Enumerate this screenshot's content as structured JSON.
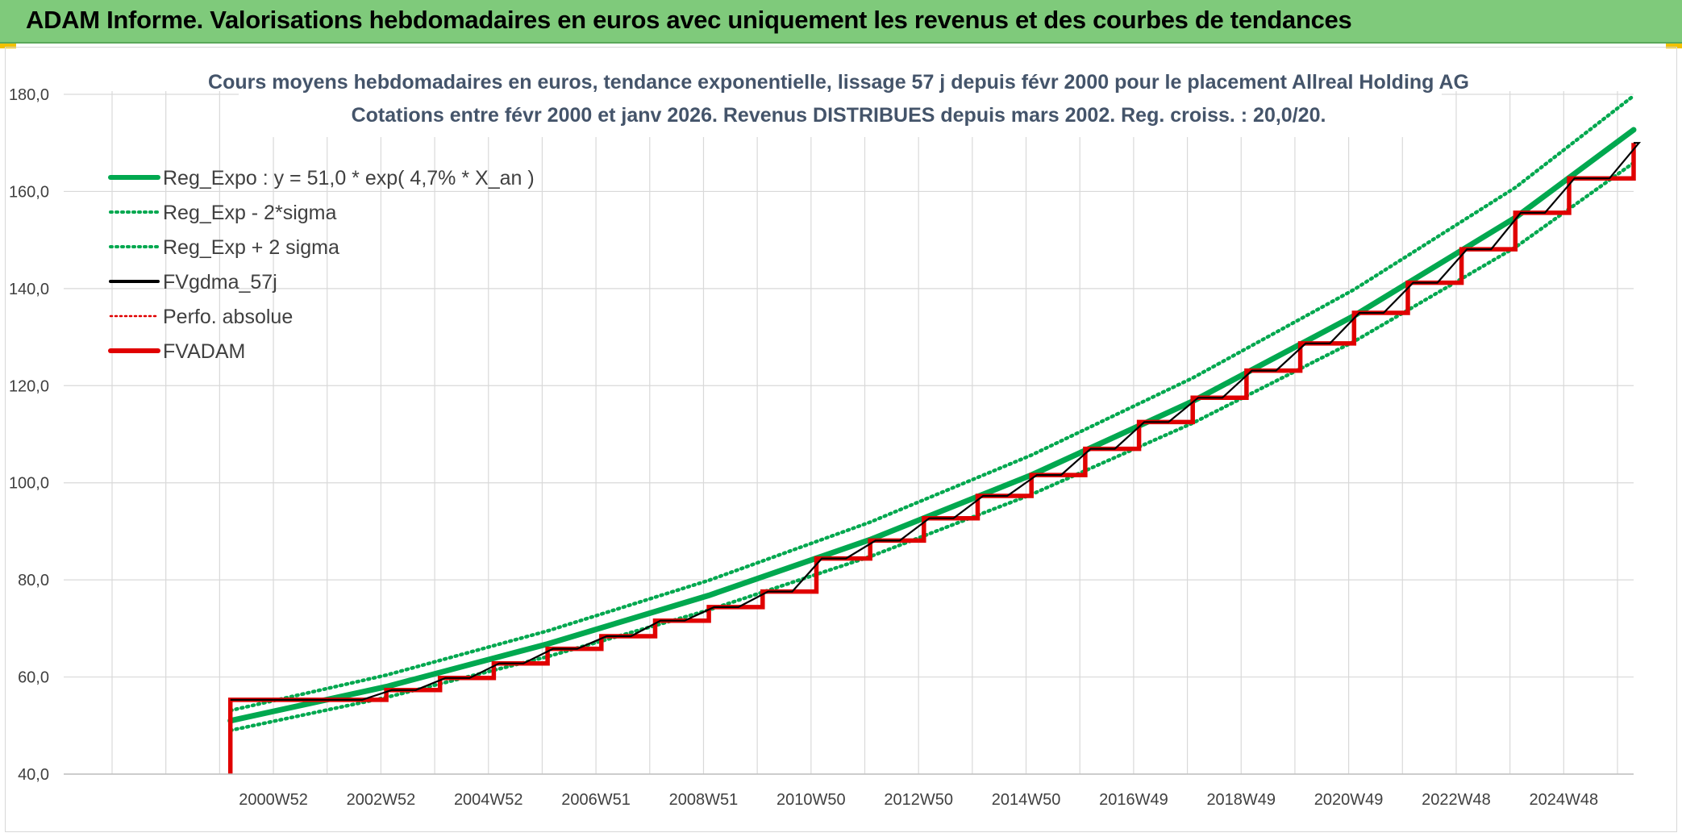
{
  "header": {
    "title": "ADAM Informe. Valorisations hebdomadaires en euros avec uniquement les revenus et des courbes de tendances"
  },
  "colors": {
    "banner": "#7fca7b",
    "reg": "#00a84f",
    "sigma": "#00a84f",
    "fvgdma": "#000000",
    "perfo": "#e00000",
    "fvadam": "#e00000"
  },
  "chart_data": {
    "type": "line",
    "title": "Cours moyens hebdomadaires en euros, tendance exponentielle, lissage 57 j depuis févr 2000 pour le placement Allreal Holding AG",
    "subtitle": "Cotations entre févr 2000 et janv 2026. Revenus DISTRIBUES depuis mars 2002. Reg. croiss. : 20,0/20.",
    "ylim": [
      40,
      180
    ],
    "yticks": [
      "40,0",
      "60,0",
      "80,0",
      "100,0",
      "120,0",
      "140,0",
      "160,0",
      "180,0"
    ],
    "xticks": [
      "2000W52",
      "2002W52",
      "2004W52",
      "2006W51",
      "2008W51",
      "2010W50",
      "2012W50",
      "2014W50",
      "2016W49",
      "2018W49",
      "2020W49",
      "2022W48",
      "2024W48"
    ],
    "x_range_years": [
      1997,
      2026.2
    ],
    "legend_position": "top-left",
    "grid": true,
    "series": [
      {
        "name": "Reg_Expo : y = 51,0 * exp( 4,7% *  X_an )",
        "key": "reg",
        "style": "solid-thick",
        "x": [
          2000.1,
          2003,
          2006,
          2009,
          2012,
          2015,
          2018,
          2021,
          2024,
          2026.2
        ],
        "y": [
          51.0,
          58.0,
          66.8,
          76.8,
          88.3,
          101.6,
          116.8,
          134.4,
          154.6,
          172.7
        ]
      },
      {
        "name": "Reg_Exp - 2*sigma",
        "key": "lower",
        "style": "dotted",
        "x": [
          2000.1,
          2003,
          2006,
          2009,
          2012,
          2015,
          2018,
          2021,
          2024,
          2026.2
        ],
        "y": [
          49.0,
          55.8,
          64.2,
          73.8,
          84.8,
          97.6,
          112.3,
          129.1,
          148.5,
          165.9
        ]
      },
      {
        "name": "Reg_Exp + 2 sigma",
        "key": "upper",
        "style": "dotted",
        "x": [
          2000.1,
          2003,
          2006,
          2009,
          2012,
          2015,
          2018,
          2021,
          2024,
          2026.2
        ],
        "y": [
          53.1,
          60.4,
          69.5,
          79.9,
          91.9,
          105.7,
          121.6,
          139.8,
          160.8,
          179.7
        ]
      },
      {
        "name": "FVgdma_57j",
        "key": "fvgdma",
        "style": "solid"
      },
      {
        "name": "Perfo. absolue",
        "key": "perfo",
        "style": "dotted"
      },
      {
        "name": "FVADAM",
        "key": "fvadam",
        "style": "step-thick",
        "start": 2000.1,
        "step_x": [
          2003,
          2004,
          2005,
          2006,
          2007,
          2008,
          2009,
          2010,
          2011,
          2012,
          2013,
          2014,
          2015,
          2016,
          2017,
          2018,
          2019,
          2020,
          2021,
          2022,
          2023,
          2024,
          2025,
          2026.2
        ],
        "step_y": [
          55.3,
          57.3,
          59.8,
          62.8,
          65.8,
          68.4,
          71.6,
          74.4,
          77.6,
          84.4,
          88.1,
          92.7,
          97.3,
          101.6,
          107.0,
          112.5,
          117.5,
          123.1,
          128.7,
          135.0,
          141.2,
          148.1,
          155.6,
          162.7,
          170.0
        ]
      }
    ]
  }
}
